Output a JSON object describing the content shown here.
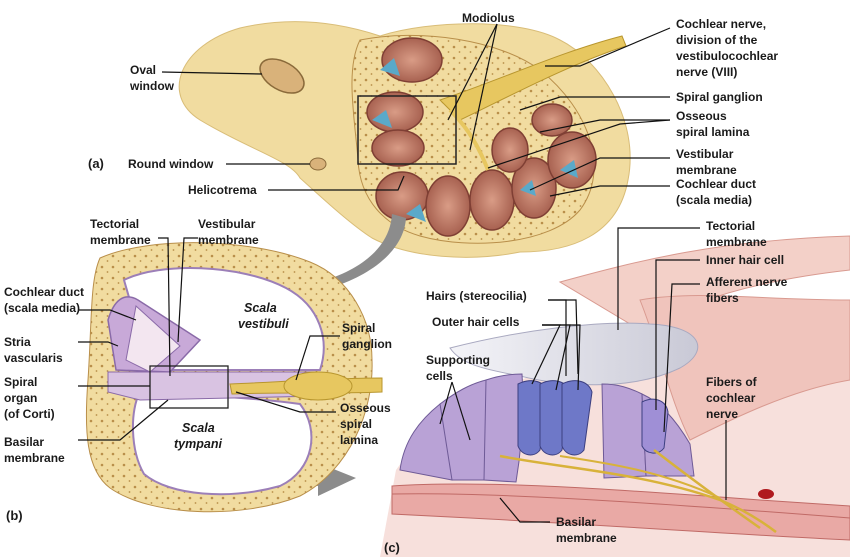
{
  "panels": {
    "a": "(a)",
    "b": "(b)",
    "c": "(c)"
  },
  "labels_a": {
    "modiolus": "Modiolus",
    "cochlear_nerve": [
      "Cochlear nerve,",
      "division of the",
      "vestibulocochlear",
      "nerve (VIII)"
    ],
    "oval_window": [
      "Oval",
      "window"
    ],
    "spiral_ganglion": "Spiral ganglion",
    "osseous_spiral_lamina": [
      "Osseous",
      "spiral lamina"
    ],
    "round_window": "Round window",
    "vestibular_membrane": [
      "Vestibular",
      "membrane"
    ],
    "helicotrema": "Helicotrema",
    "cochlear_duct": [
      "Cochlear duct",
      "(scala media)"
    ]
  },
  "labels_b": {
    "tectorial_membrane": [
      "Tectorial",
      "membrane"
    ],
    "vestibular_membrane": [
      "Vestibular",
      "membrane"
    ],
    "cochlear_duct": [
      "Cochlear duct",
      "(scala media)"
    ],
    "scala_vestibuli": [
      "Scala",
      "vestibuli"
    ],
    "stria_vascularis": [
      "Stria",
      "vascularis"
    ],
    "spiral_ganglion": [
      "Spiral",
      "ganglion"
    ],
    "spiral_organ": [
      "Spiral",
      "organ",
      "(of Corti)"
    ],
    "osseous_spiral_lamina": [
      "Osseous",
      "spiral",
      "lamina"
    ],
    "scala_tympani": [
      "Scala",
      "tympani"
    ],
    "basilar_membrane": [
      "Basilar",
      "membrane"
    ]
  },
  "labels_c": {
    "tectorial_membrane": [
      "Tectorial",
      "membrane"
    ],
    "inner_hair_cell": "Inner hair cell",
    "afferent_nerve_fibers": [
      "Afferent nerve",
      "fibers"
    ],
    "hairs": "Hairs (stereocilia)",
    "outer_hair_cells": "Outer hair cells",
    "supporting_cells": [
      "Supporting",
      "cells"
    ],
    "fibers_cochlear_nerve": [
      "Fibers of",
      "cochlear",
      "nerve"
    ],
    "basilar_membrane": [
      "Basilar",
      "membrane"
    ]
  },
  "colors": {
    "bone": "#f1dca0",
    "bone_dot": "#b98f4a",
    "chamber": "#b66a5a",
    "duct": "#5aa9c9",
    "nerve": "#e7c760",
    "cells": "#b9a2d6",
    "arrow": "#8c8c8c"
  }
}
